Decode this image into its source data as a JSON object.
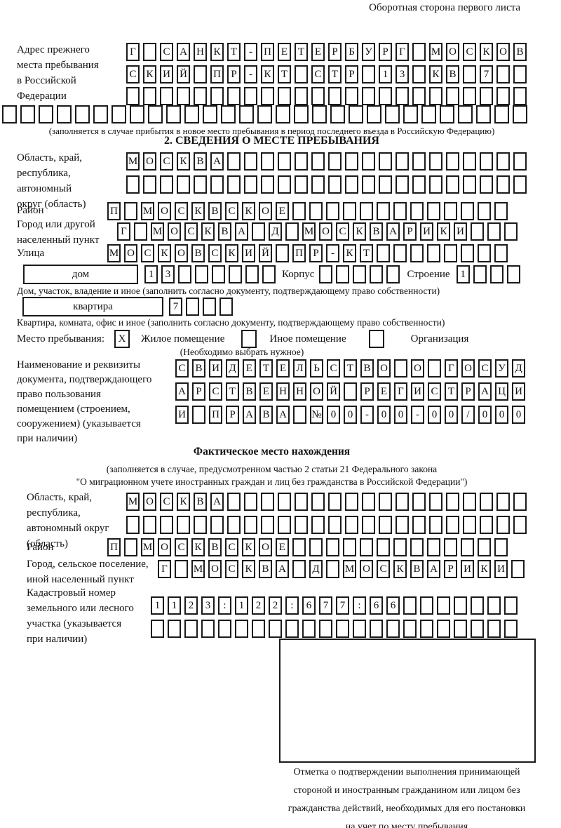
{
  "page": {
    "corner_note": "Оборотная сторона первого листа"
  },
  "prev_address": {
    "label_lines": [
      "Адрес прежнего",
      "места пребывания",
      "в Российской",
      "Федерации"
    ],
    "rows": [
      "Г САНКТ-ПЕТЕРБУРГ МОСКОВ",
      "СКИЙ ПР-КТ СТР 13 КВ 7",
      ""
    ],
    "full_row": "",
    "note": "(заполняется в случае прибытия в новое место пребывания в период последнего въезда в Российскую Федерацию)"
  },
  "section2": {
    "title": "2. СВЕДЕНИЯ О МЕСТЕ ПРЕБЫВАНИЯ",
    "region": {
      "label_lines": [
        "Область, край,",
        "республика,",
        "автономный",
        "округ (область)"
      ],
      "rows": [
        "МОСКВА",
        ""
      ]
    },
    "district": {
      "label": "Район",
      "row": "П МОСКВСКОЕ"
    },
    "city": {
      "label_lines": [
        "Город или другой",
        "населенный пункт"
      ],
      "row": "Г МОСКВА Д МОСКВАРИКИ"
    },
    "street": {
      "label": "Улица",
      "row": "МОСКОВСКИЙ ПР-КТ"
    },
    "house": {
      "box_label": "дом",
      "cells": "13",
      "korpus_label": "Корпус",
      "korpus_cells": "",
      "stroenie_label": "Строение",
      "stroenie_cells": "1"
    },
    "house_note": "Дом, участок, владение и иное (заполнить согласно документу, подтверждающему право собственности)",
    "apartment": {
      "box_label": "квартира",
      "cells": "7"
    },
    "apartment_note": "Квартира, комната, офис и иное (заполнить согласно документу, подтверждающему право собственности)",
    "stay_type": {
      "label": "Место пребывания:",
      "options": [
        {
          "label": "Жилое помещение",
          "mark": "X"
        },
        {
          "label": "Иное помещение",
          "mark": ""
        },
        {
          "label": "Организация",
          "mark": ""
        }
      ],
      "note": "(Необходимо выбрать нужное)"
    },
    "doc": {
      "label_lines": [
        "Наименование и реквизиты",
        "документа, подтверждающего",
        "право пользования",
        "помещением (строением,",
        "сооружением) (указывается",
        "при наличии)"
      ],
      "rows": [
        "СВИДЕТЕЛЬСТВО О ГОСУД",
        "АРСТВЕННОЙ РЕГИСТРАЦИ",
        "И ПРАВА №00-00-00/000"
      ]
    }
  },
  "actual_location": {
    "title": "Фактическое место нахождения",
    "note_lines": [
      "(заполняется в случае, предусмотренном частью 2 статьи 21 Федерального закона",
      "\"О миграционном учете иностранных граждан и лиц без гражданства в Российской Федерации\")"
    ],
    "region": {
      "label_lines": [
        "Область, край,",
        "республика,",
        "автономный округ",
        "(область)"
      ],
      "rows": [
        "МОСКВА",
        ""
      ]
    },
    "district": {
      "label": "Район",
      "row": "П МОСКВСКОЕ"
    },
    "city": {
      "label_lines": [
        "Город, сельское поселение,",
        "иной населенный пункт"
      ],
      "row": "Г МОСКВА Д МОСКВАРИКИ"
    },
    "cadastre": {
      "label_lines": [
        "Кадастровый номер",
        "земельного или лесного",
        "участка (указывается",
        "при наличии)"
      ],
      "rows": [
        "1123:122:677:66",
        ""
      ]
    }
  },
  "stamp": {
    "caption_lines": [
      "Отметка о подтверждении выполнения принимающей",
      "стороной и иностранным гражданином или лицом без",
      "гражданства действий, необходимых для его постановки",
      "на учет по месту пребывания"
    ]
  }
}
